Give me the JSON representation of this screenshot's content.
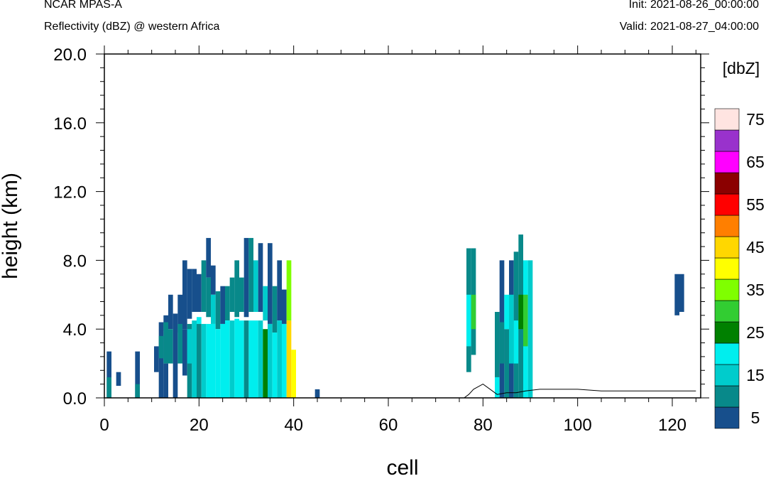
{
  "header": {
    "model": "NCAR MPAS-A",
    "field": "Reflectivity (dBZ) @ western Africa",
    "init": "Init: 2021-08-26_00:00:00",
    "valid": "Valid: 2021-08-27_04:00:00"
  },
  "chart_data": {
    "type": "heatmap",
    "xlabel": "cell",
    "ylabel": "height (km)",
    "xlim": [
      0,
      126
    ],
    "ylim": [
      0,
      20
    ],
    "xticks": [
      0,
      20,
      40,
      60,
      80,
      100,
      120
    ],
    "xtick_labels": [
      "0",
      "20",
      "40",
      "60",
      "80",
      "100",
      "120"
    ],
    "yticks": [
      0,
      4,
      8,
      12,
      16,
      20
    ],
    "ytick_labels": [
      "0.0",
      "4.0",
      "8.0",
      "12.0",
      "16.0",
      "20.0"
    ],
    "colorbar": {
      "unit_label": "[dbZ]",
      "levels": [
        5,
        10,
        15,
        20,
        25,
        30,
        35,
        40,
        45,
        50,
        55,
        60,
        65,
        70,
        75
      ],
      "colors": [
        "#174f8c",
        "#08898a",
        "#00cccc",
        "#00eeee",
        "#008000",
        "#32cd32",
        "#7fff00",
        "#ffff00",
        "#ffd700",
        "#ff7f00",
        "#ff0000",
        "#8b0000",
        "#ff00ff",
        "#9932cc",
        "#ffe4e1"
      ],
      "tick_labels": [
        "5",
        "15",
        "25",
        "35",
        "45",
        "55",
        "65",
        "75"
      ]
    },
    "cell_levels": {
      "0.5": [
        [
          1,
          0,
          2.7,
          5
        ],
        [
          1,
          0,
          1.2,
          10
        ],
        [
          3,
          0.7,
          1.5,
          5
        ],
        [
          7,
          0,
          2.7,
          5
        ],
        [
          7,
          0,
          0.8,
          10
        ],
        [
          11,
          1.5,
          3.0,
          5
        ],
        [
          12,
          0,
          4.4,
          5
        ],
        [
          12,
          2.3,
          3.6,
          10
        ],
        [
          13,
          3.9,
          4.8,
          5
        ],
        [
          13,
          2.0,
          4.4,
          10
        ],
        [
          13,
          0,
          2.0,
          5
        ],
        [
          14,
          4.0,
          6.0,
          5
        ],
        [
          14,
          2.0,
          4.0,
          10
        ],
        [
          15,
          2.5,
          4.9,
          5
        ],
        [
          15,
          0,
          2.5,
          5
        ],
        [
          16,
          3.8,
          6.0,
          5
        ],
        [
          16,
          2.0,
          4.3,
          10
        ],
        [
          17,
          4.0,
          8.0,
          5
        ],
        [
          17,
          1.3,
          4.0,
          5
        ],
        [
          18,
          4.6,
          7.5,
          5
        ],
        [
          18,
          0,
          4.3,
          10
        ],
        [
          18,
          2.0,
          4.0,
          15
        ],
        [
          19,
          5.0,
          7.5,
          5
        ],
        [
          19,
          0,
          4.5,
          15
        ],
        [
          20,
          4.3,
          4.7,
          20
        ],
        [
          20,
          0,
          4.3,
          10
        ],
        [
          20,
          5.0,
          7.2,
          5
        ],
        [
          21,
          5.0,
          8.0,
          10
        ],
        [
          21,
          0,
          4.3,
          15
        ],
        [
          22,
          7.0,
          9.3,
          5
        ],
        [
          22,
          4.7,
          7.0,
          10
        ],
        [
          22,
          0,
          4.3,
          20
        ],
        [
          23,
          6.0,
          7.7,
          5
        ],
        [
          23,
          4.3,
          6.0,
          15
        ],
        [
          23,
          0,
          4.3,
          20
        ],
        [
          24,
          4.0,
          6.2,
          10
        ],
        [
          24,
          0,
          4.0,
          20
        ],
        [
          25,
          4.3,
          6.5,
          5
        ],
        [
          25,
          0,
          4.3,
          20
        ],
        [
          26,
          4.5,
          6.5,
          10
        ],
        [
          26,
          0,
          4.5,
          20
        ],
        [
          27,
          5.0,
          7.0,
          10
        ],
        [
          27,
          0,
          4.5,
          15
        ],
        [
          28,
          4.7,
          8.0,
          10
        ],
        [
          28,
          0,
          4.6,
          20
        ],
        [
          29,
          5.0,
          7.0,
          10
        ],
        [
          29,
          0,
          4.5,
          20
        ],
        [
          30,
          4.7,
          9.3,
          5
        ],
        [
          30,
          0,
          4.5,
          10
        ],
        [
          31,
          5.0,
          9.3,
          10
        ],
        [
          31,
          0,
          4.5,
          20
        ],
        [
          32,
          5.0,
          8.0,
          15
        ],
        [
          32,
          0,
          4.5,
          20
        ],
        [
          33,
          5.0,
          9.0,
          5
        ],
        [
          33,
          0,
          4.5,
          15
        ],
        [
          34,
          4.5,
          6.5,
          15
        ],
        [
          34,
          0,
          4.0,
          25
        ],
        [
          35,
          4.3,
          9.0,
          5
        ],
        [
          35,
          0,
          4.3,
          15
        ],
        [
          36,
          3.8,
          6.5,
          10
        ],
        [
          36,
          0,
          3.8,
          20
        ],
        [
          37,
          4.5,
          8.0,
          5
        ],
        [
          37,
          0,
          4.5,
          15
        ],
        [
          38,
          4.3,
          6.3,
          5
        ],
        [
          38,
          0,
          4.3,
          20
        ],
        [
          39,
          4.5,
          8.0,
          35
        ],
        [
          39,
          0,
          4.5,
          45
        ],
        [
          40,
          0,
          2.8,
          40
        ],
        [
          45,
          0,
          0.5,
          5
        ],
        [
          77,
          1.5,
          8.7,
          10
        ],
        [
          77,
          3.0,
          6.0,
          20
        ],
        [
          78,
          2.5,
          8.7,
          10
        ],
        [
          78,
          4.0,
          6.0,
          30
        ],
        [
          83,
          1.2,
          5.0,
          10
        ],
        [
          83,
          0,
          1.2,
          20
        ],
        [
          84,
          0,
          8.0,
          5
        ],
        [
          84,
          2.0,
          4.4,
          10
        ],
        [
          85,
          0,
          4.0,
          10
        ],
        [
          85,
          4.0,
          6.0,
          20
        ],
        [
          86,
          0,
          8.0,
          5
        ],
        [
          86,
          2.0,
          6.0,
          15
        ],
        [
          87,
          0,
          8.5,
          10
        ],
        [
          87,
          2.0,
          4.5,
          20
        ],
        [
          88,
          0,
          9.5,
          10
        ],
        [
          88,
          4.0,
          6.0,
          25
        ],
        [
          89,
          0,
          8.0,
          20
        ],
        [
          89,
          3.0,
          6.0,
          30
        ],
        [
          90,
          0,
          8.0,
          15
        ],
        [
          121,
          4.8,
          7.2,
          5
        ],
        [
          122,
          5.0,
          7.2,
          5
        ]
      ]
    },
    "terrain": [
      [
        0,
        0
      ],
      [
        76,
        0
      ],
      [
        77,
        0.2
      ],
      [
        78,
        0.5
      ],
      [
        80,
        0.8
      ],
      [
        82,
        0.4
      ],
      [
        83,
        0.2
      ],
      [
        85,
        0.3
      ],
      [
        87,
        0.3
      ],
      [
        89,
        0.4
      ],
      [
        92,
        0.5
      ],
      [
        95,
        0.5
      ],
      [
        100,
        0.5
      ],
      [
        105,
        0.4
      ],
      [
        110,
        0.4
      ],
      [
        115,
        0.4
      ],
      [
        120,
        0.4
      ],
      [
        125,
        0.4
      ]
    ]
  }
}
